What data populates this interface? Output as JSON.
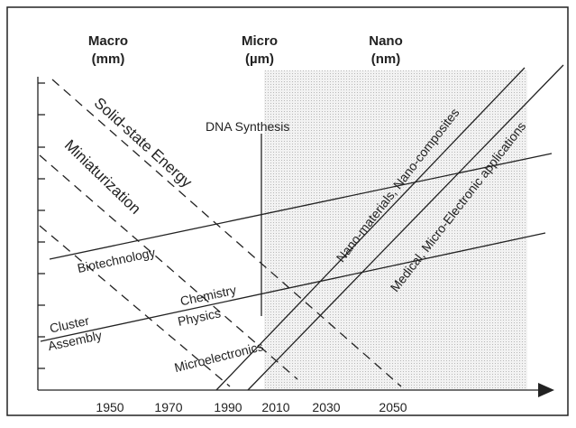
{
  "headers": [
    {
      "title": "Macro",
      "unit": "(mm)"
    },
    {
      "title": "Micro",
      "unit": "(µm)"
    },
    {
      "title": "Nano",
      "unit": "(nm)"
    }
  ],
  "x_labels": [
    "1950",
    "1970",
    "1990",
    "2010",
    "2030",
    "2050"
  ],
  "labels": {
    "solid_state": "Solid-state Energy",
    "miniaturization": "Miniaturization",
    "dna": "DNA Synthesis",
    "biotechnology": "Biotechnology",
    "chemistry": "Chemistry",
    "physics": "Physics",
    "cluster": "Cluster",
    "assembly": "Assembly",
    "microelectronics": "Microelectronics",
    "nano_materials": "Nano-materials, Nano-composites",
    "medical": "Medical, Micro-Electronic applications"
  }
}
